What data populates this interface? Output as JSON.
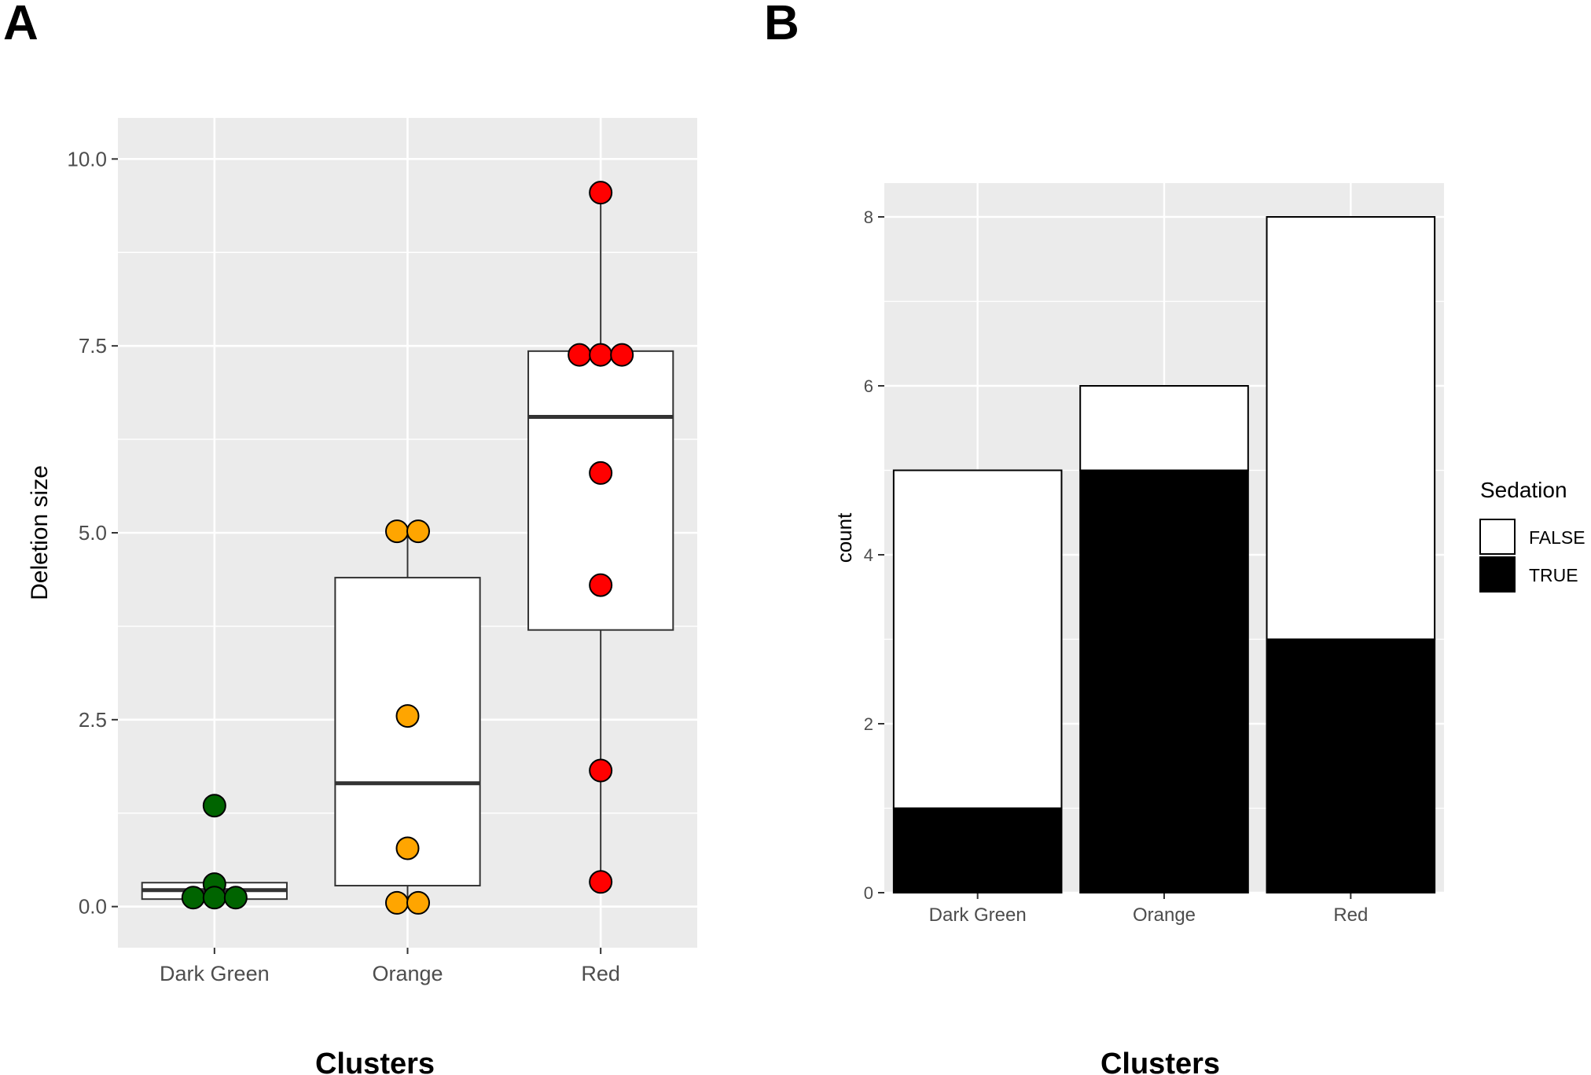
{
  "panels": {
    "a_label": "A",
    "b_label": "B"
  },
  "chart_data": [
    {
      "type": "boxplot",
      "panel": "A",
      "xlabel": "Clusters",
      "ylabel": "Deletion size",
      "categories": [
        "Dark Green",
        "Orange",
        "Red"
      ],
      "ylim": [
        -0.55,
        10.55
      ],
      "yticks": [
        0.0,
        2.5,
        5.0,
        7.5,
        10.0
      ],
      "ytick_labels": [
        "0.0",
        "2.5",
        "5.0",
        "7.5",
        "10.0"
      ],
      "grid": true,
      "boxes": [
        {
          "category": "Dark Green",
          "min": 0.1,
          "q1": 0.1,
          "median": 0.22,
          "q3": 0.32,
          "max": 0.32
        },
        {
          "category": "Orange",
          "min": 0.05,
          "q1": 0.28,
          "median": 1.65,
          "q3": 4.4,
          "max": 5.02
        },
        {
          "category": "Red",
          "min": 0.33,
          "q1": 3.7,
          "median": 6.55,
          "q3": 7.43,
          "max": 9.55
        }
      ],
      "points": [
        {
          "category": "Dark Green",
          "values": [
            1.35,
            0.3,
            0.12,
            0.12,
            0.12
          ],
          "offsets": [
            0,
            0,
            -0.22,
            0,
            0.22
          ],
          "color": "#006400"
        },
        {
          "category": "Orange",
          "values": [
            5.02,
            5.02,
            2.55,
            0.78,
            0.05,
            0.05
          ],
          "offsets": [
            -0.11,
            0.11,
            0,
            0,
            -0.11,
            0.11
          ],
          "color": "#FFA500"
        },
        {
          "category": "Red",
          "values": [
            9.55,
            7.38,
            7.38,
            7.38,
            5.8,
            4.3,
            1.82,
            0.33
          ],
          "offsets": [
            0,
            -0.22,
            0,
            0.22,
            0,
            0,
            0,
            0
          ],
          "color": "#FF0000"
        }
      ]
    },
    {
      "type": "bar",
      "stacked": true,
      "panel": "B",
      "xlabel": "Clusters",
      "ylabel": "count",
      "categories": [
        "Dark Green",
        "Orange",
        "Red"
      ],
      "ylim": [
        0,
        8.4
      ],
      "yticks": [
        0,
        2,
        4,
        6,
        8
      ],
      "ytick_labels": [
        "0",
        "2",
        "4",
        "6",
        "8"
      ],
      "grid": true,
      "series": [
        {
          "name": "TRUE",
          "values": [
            1,
            5,
            3
          ],
          "color": "#000000"
        },
        {
          "name": "FALSE",
          "values": [
            4,
            1,
            5
          ],
          "color": "#ffffff"
        }
      ],
      "legend": {
        "title": "Sedation",
        "placement": "right",
        "entries": [
          "FALSE",
          "TRUE"
        ]
      }
    }
  ]
}
